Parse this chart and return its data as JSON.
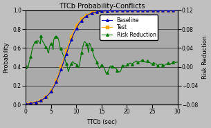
{
  "title": "TTCb Probability-Conflicts",
  "xlabel": "TTCb (sec)",
  "ylabel_left": "Probability",
  "ylabel_right": "Risk Reduction",
  "xlim": [
    0,
    30
  ],
  "ylim_left": [
    0.0,
    1.0
  ],
  "ylim_right": [
    -0.08,
    0.12
  ],
  "yticks_left": [
    0.0,
    0.2,
    0.4,
    0.6,
    0.8,
    1.0
  ],
  "yticks_right": [
    -0.08,
    -0.04,
    0.0,
    0.04,
    0.08,
    0.12
  ],
  "xticks": [
    0,
    5,
    10,
    15,
    20,
    25,
    30
  ],
  "baseline_color": "#0000BB",
  "test_color": "#FFaa00",
  "risk_color": "#007700",
  "bg_color": "#C0C0C0",
  "plot_bg_color": "#AAAAAA",
  "title_fontsize": 7,
  "axis_fontsize": 6,
  "tick_fontsize": 5.5,
  "legend_fontsize": 5.5
}
